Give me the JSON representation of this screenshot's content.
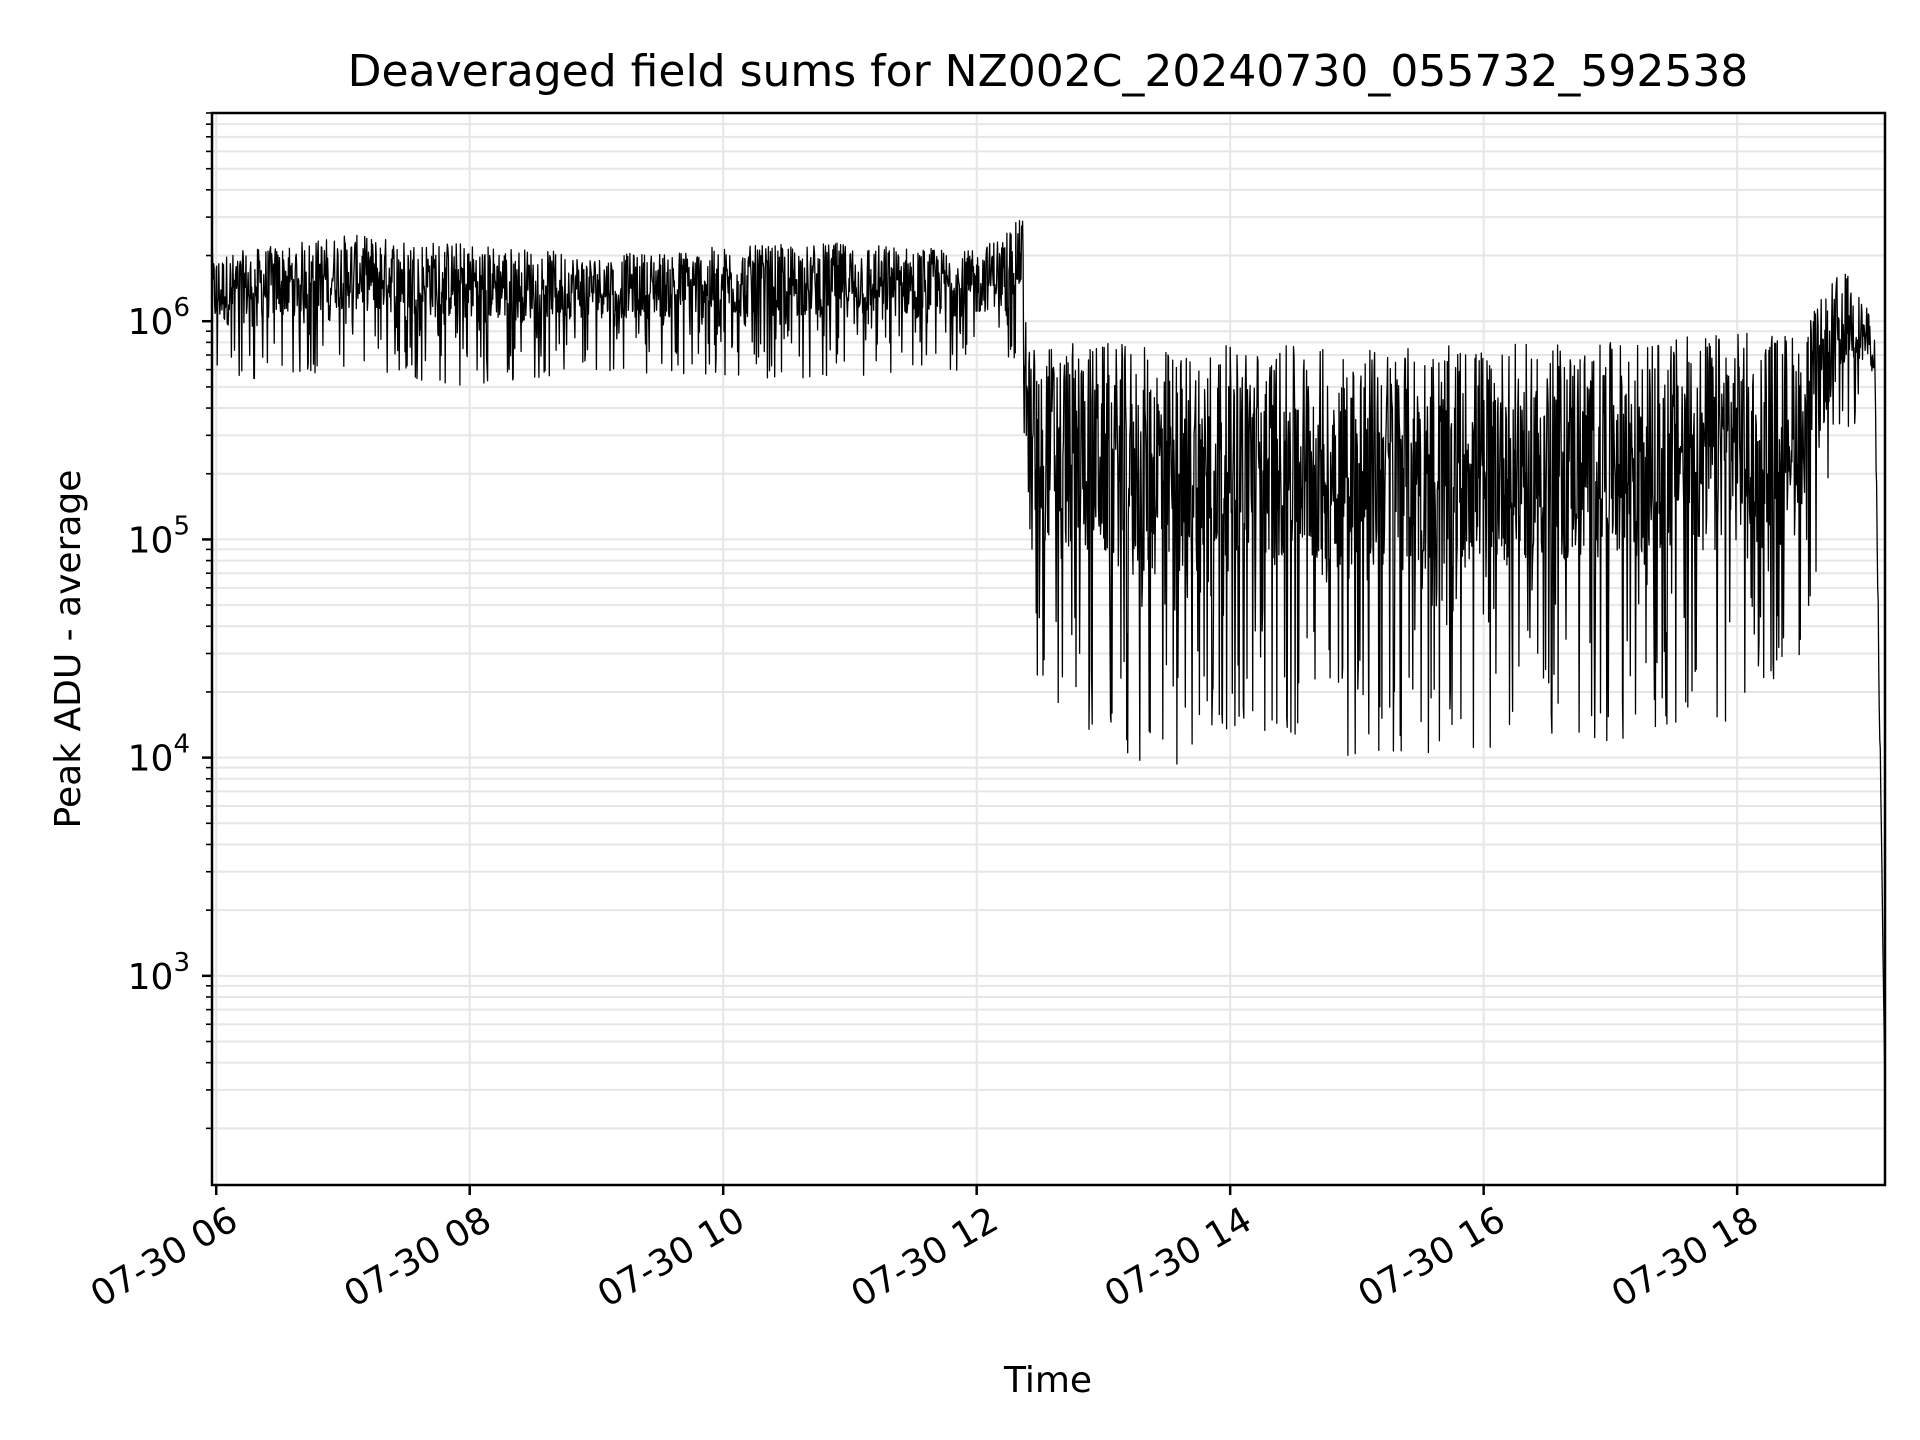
{
  "chart_data": {
    "type": "line",
    "title": "Deaveraged field sums for NZ002C_20240730_055732_592538",
    "xlabel": "Time",
    "ylabel": "Peak ADU - average",
    "yscale": "log",
    "ylim": [
      110,
      9000000
    ],
    "xlim": [
      "2024-07-30T05:58",
      "2024-07-30T19:10"
    ],
    "x_ticks": [
      "07-30 06",
      "07-30 08",
      "07-30 10",
      "07-30 12",
      "07-30 14",
      "07-30 16",
      "07-30 18"
    ],
    "y_ticks": [
      {
        "base": "10",
        "exp": "3"
      },
      {
        "base": "10",
        "exp": "4"
      },
      {
        "base": "10",
        "exp": "5"
      },
      {
        "base": "10",
        "exp": "6"
      }
    ],
    "grid": true,
    "line_color": "#000000",
    "series": [
      {
        "x": [
          "2024-07-30T05:58",
          "2024-07-30T07:00",
          "2024-07-30T08:00",
          "2024-07-30T09:00",
          "2024-07-30T10:00",
          "2024-07-30T11:00",
          "2024-07-30T12:00",
          "2024-07-30T12:22",
          "2024-07-30T12:24",
          "2024-07-30T13:00",
          "2024-07-30T13:30",
          "2024-07-30T14:00",
          "2024-07-30T15:00",
          "2024-07-30T16:00",
          "2024-07-30T17:00",
          "2024-07-30T18:00",
          "2024-07-30T18:30",
          "2024-07-30T18:50",
          "2024-07-30T19:05",
          "2024-07-30T19:10"
        ],
        "high": [
          2000000,
          2500000,
          2300000,
          2000000,
          2200000,
          2300000,
          2100000,
          3000000,
          800000,
          800000,
          750000,
          780000,
          760000,
          780000,
          800000,
          900000,
          900000,
          1800000,
          1000000,
          300
        ],
        "low": [
          500000,
          600000,
          500000,
          600000,
          550000,
          550000,
          600000,
          700000,
          20000,
          12000,
          8000,
          14000,
          10000,
          11000,
          12000,
          15000,
          30000,
          300000,
          400000,
          250
        ]
      }
    ]
  }
}
